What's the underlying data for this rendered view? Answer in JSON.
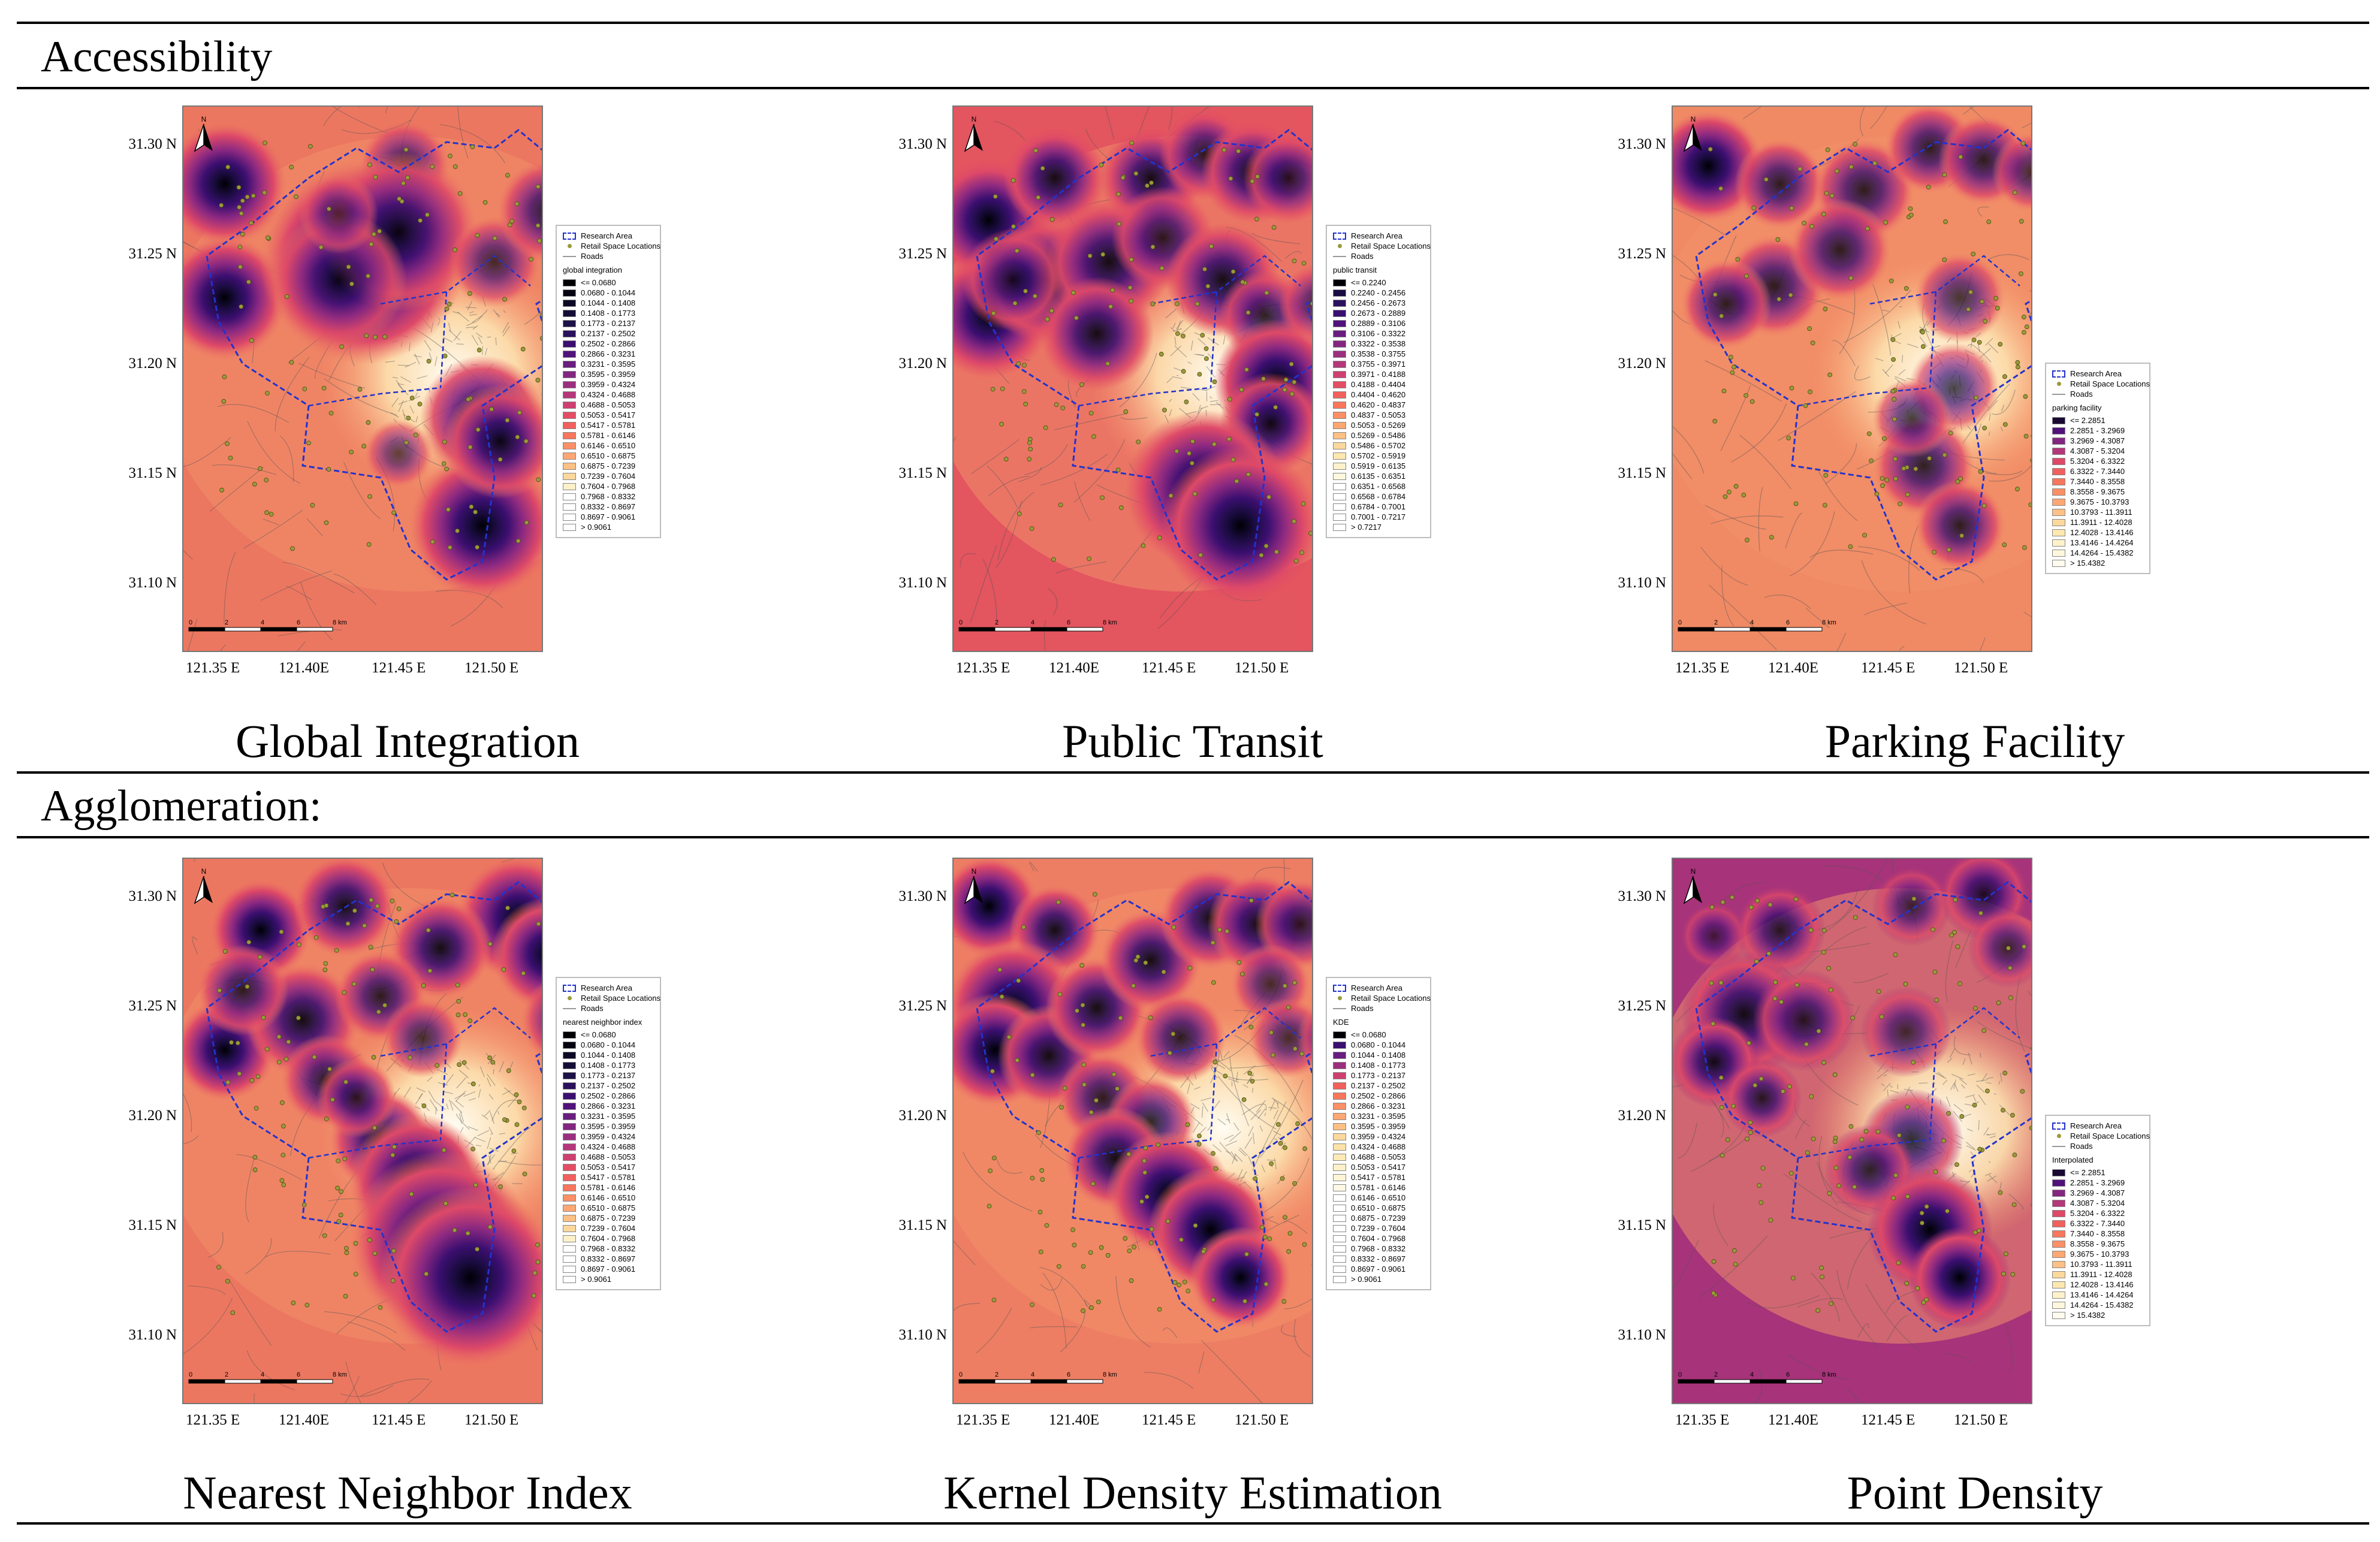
{
  "sections": [
    {
      "title": "Accessibility"
    },
    {
      "title": "Agglomeration:"
    }
  ],
  "lat_ticks": [
    "31.30 N",
    "31.25 N",
    "31.20 N",
    "31.15 N",
    "31.10 N"
  ],
  "lon_ticks": [
    "121.35 E",
    "121.40E",
    "121.45 E",
    "121.50 E"
  ],
  "scale_bar": [
    "0",
    "2",
    "4",
    "6",
    "8 km"
  ],
  "north_label": "N",
  "common_legend": {
    "research_area": "Research Area",
    "retail": "Retail Space Locations",
    "roads": "Roads"
  },
  "scales": {
    "integration": [
      "<= 0.0680",
      "0.0680 - 0.1044",
      "0.1044 - 0.1408",
      "0.1408 - 0.1773",
      "0.1773 - 0.2137",
      "0.2137 - 0.2502",
      "0.2502 - 0.2866",
      "0.2866 - 0.3231",
      "0.3231 - 0.3595",
      "0.3595 - 0.3959",
      "0.3959 - 0.4324",
      "0.4324 - 0.4688",
      "0.4688 - 0.5053",
      "0.5053 - 0.5417",
      "0.5417 - 0.5781",
      "0.5781 - 0.6146",
      "0.6146 - 0.6510",
      "0.6510 - 0.6875",
      "0.6875 - 0.7239",
      "0.7239 - 0.7604",
      "0.7604 - 0.7968",
      "0.7968 - 0.8332",
      "0.8332 - 0.8697",
      "0.8697 - 0.9061",
      "> 0.9061"
    ],
    "transit": [
      "<= 0.2240",
      "0.2240 - 0.2456",
      "0.2456 - 0.2673",
      "0.2673 - 0.2889",
      "0.2889 - 0.3106",
      "0.3106 - 0.3322",
      "0.3322 - 0.3538",
      "0.3538 - 0.3755",
      "0.3755 - 0.3971",
      "0.3971 - 0.4188",
      "0.4188 - 0.4404",
      "0.4404 - 0.4620",
      "0.4620 - 0.4837",
      "0.4837 - 0.5053",
      "0.5053 - 0.5269",
      "0.5269 - 0.5486",
      "0.5486 - 0.5702",
      "0.5702 - 0.5919",
      "0.5919 - 0.6135",
      "0.6135 - 0.6351",
      "0.6351 - 0.6568",
      "0.6568 - 0.6784",
      "0.6784 - 0.7001",
      "0.7001 - 0.7217",
      "> 0.7217"
    ],
    "parking": [
      "<= 2.2851",
      "2.2851 - 3.2969",
      "3.2969 - 4.3087",
      "4.3087 - 5.3204",
      "5.3204 - 6.3322",
      "6.3322 - 7.3440",
      "7.3440 - 8.3558",
      "8.3558 - 9.3675",
      "9.3675 - 10.3793",
      "10.3793 - 11.3911",
      "11.3911 - 12.4028",
      "12.4028 - 13.4146",
      "13.4146 - 14.4264",
      "14.4264 - 15.4382",
      "> 15.4382"
    ]
  },
  "panels": [
    {
      "caption": "Global Integration",
      "legend_title": "global integration",
      "scale": "integration",
      "palette": "integration",
      "bg": "#ec7760",
      "legend_pos": "mid"
    },
    {
      "caption": "Public Transit",
      "legend_title": "public transit",
      "scale": "transit",
      "palette": "transit",
      "bg": "#e3555f",
      "legend_pos": "mid"
    },
    {
      "caption": "Parking Facility",
      "legend_title": "parking facility",
      "scale": "parking",
      "palette": "parking",
      "bg": "#f08a64",
      "legend_pos": "low"
    },
    {
      "caption": "Nearest Neighbor Index",
      "legend_title": "nearest neighbor index",
      "scale": "integration",
      "palette": "integration",
      "bg": "#ec7760",
      "legend_pos": "mid"
    },
    {
      "caption": "Kernel Density Estimation",
      "legend_title": "KDE",
      "scale": "integration",
      "palette": "kde",
      "bg": "#ed7e63",
      "legend_pos": "mid"
    },
    {
      "caption": "Point Density",
      "legend_title": "Interpolated",
      "scale": "parking",
      "palette": "parking",
      "bg": "#a7337a",
      "legend_pos": "low"
    }
  ],
  "colors": {
    "research_area": "#2233cc",
    "retail": "#9a9a3a",
    "road": "#555555",
    "core": "#000004",
    "ring1": "#3b0f70",
    "ring2": "#8c2981",
    "ring3": "#de4968",
    "light": "#fde8b8"
  }
}
